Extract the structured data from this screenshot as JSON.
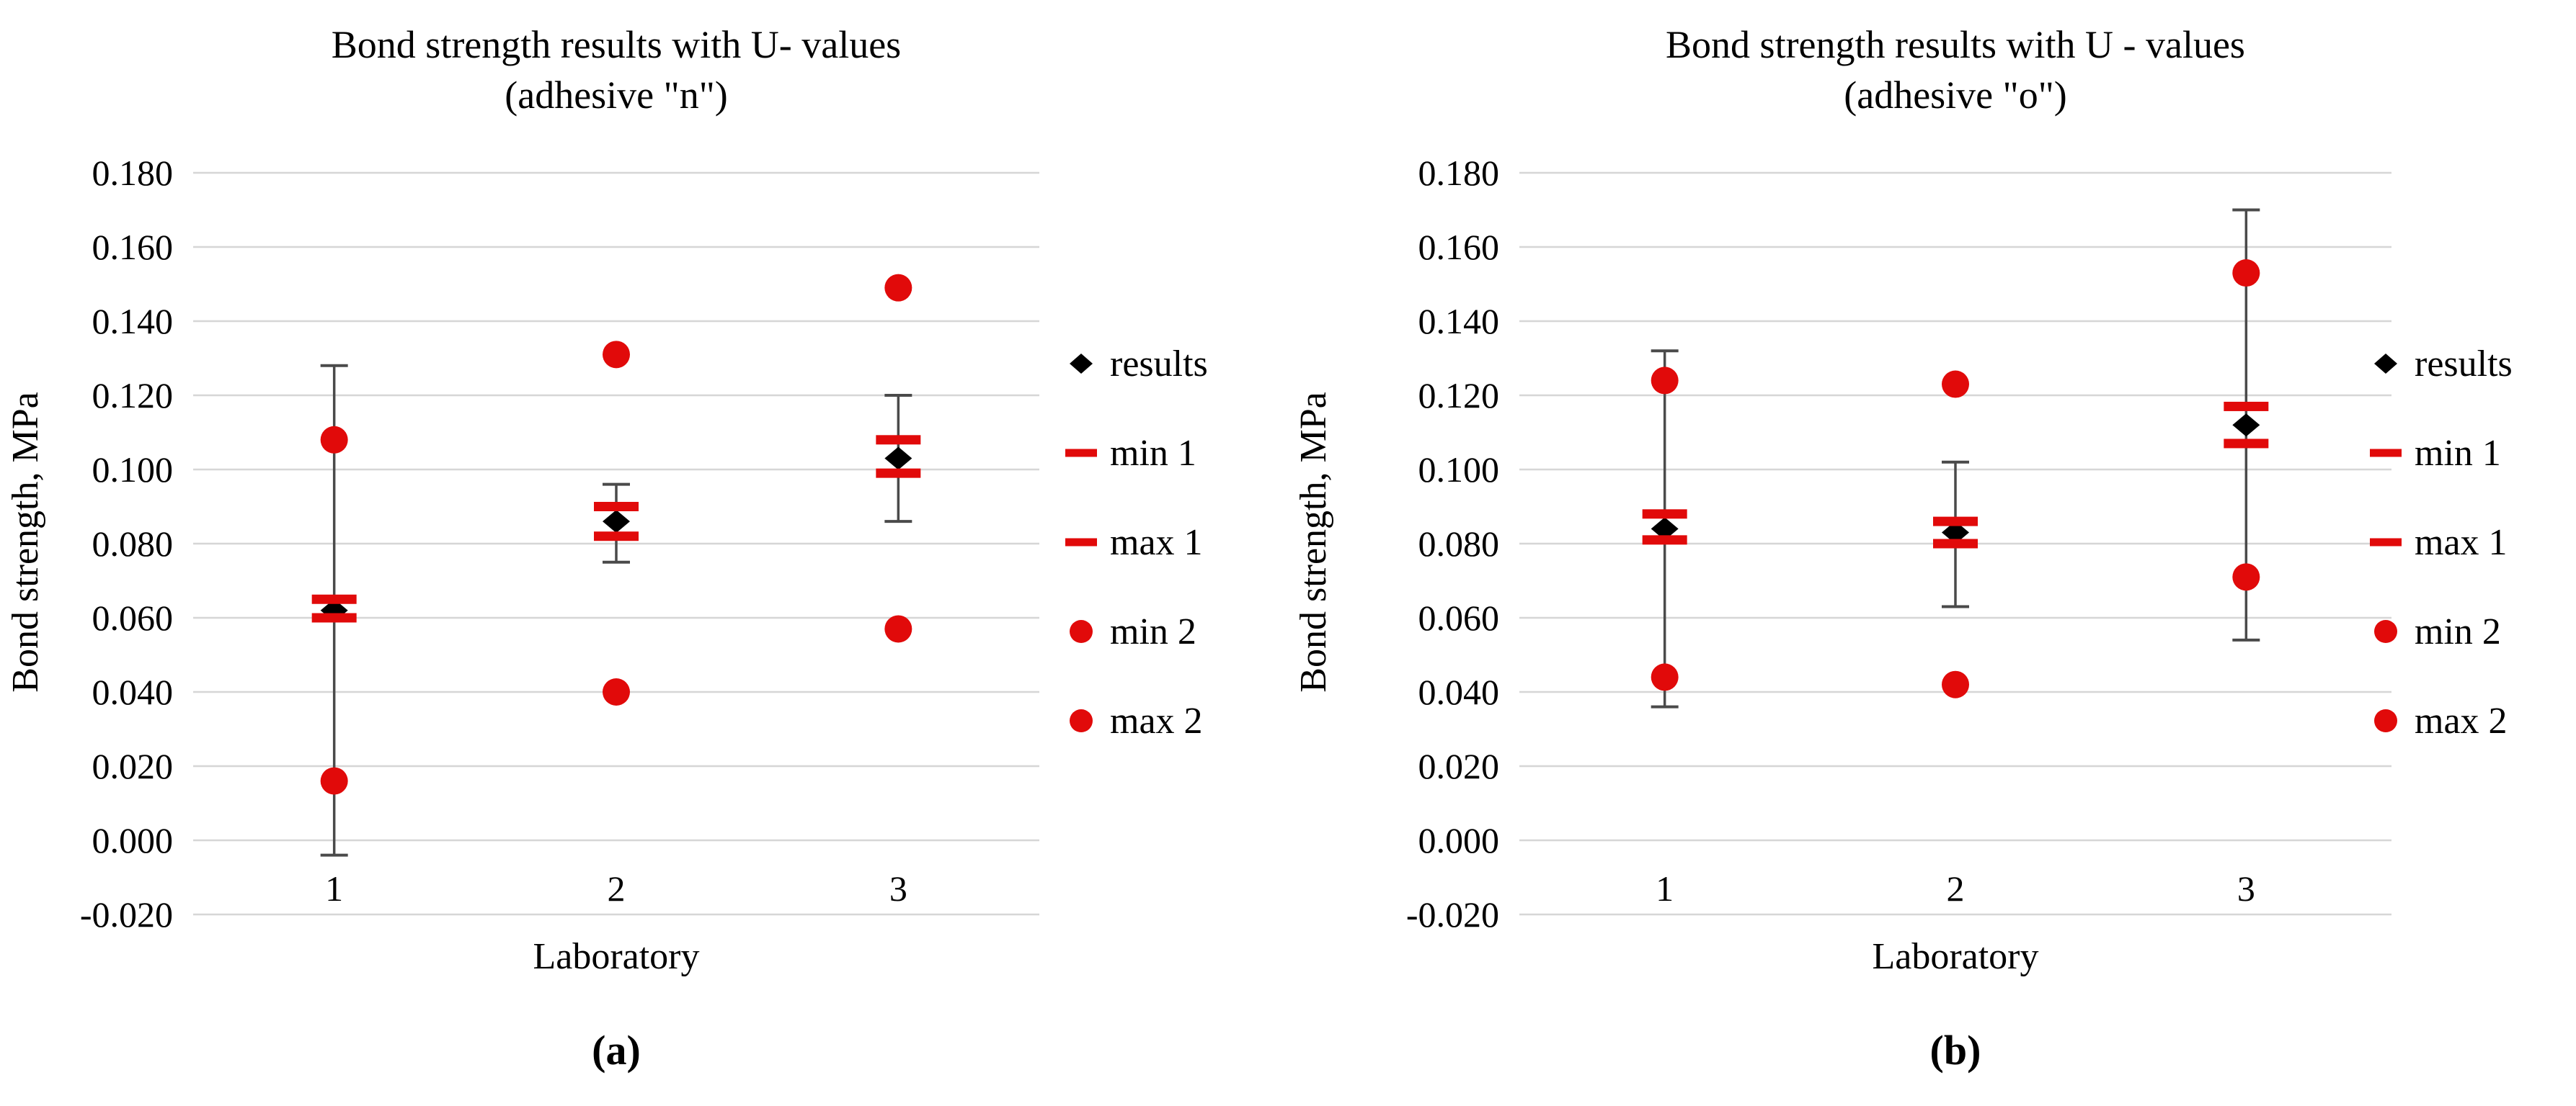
{
  "figure": {
    "background": "#ffffff",
    "panels": [
      "a",
      "b"
    ]
  },
  "colors": {
    "marker_red": "#e10a0a",
    "marker_black": "#000000",
    "gridline": "#d6d6d6",
    "error_bar": "#4a4a4a",
    "text": "#000000"
  },
  "chart_data": [
    {
      "type": "scatter",
      "panel": "a",
      "title": "Bond strength results with U- values",
      "subtitle": "(adhesive \"n\")",
      "xlabel": "Laboratory",
      "ylabel": "Bond strength, MPa",
      "caption": "(a)",
      "categories": [
        "1",
        "2",
        "3"
      ],
      "ylim": [
        -0.02,
        0.18
      ],
      "ytick_step": 0.02,
      "yticks": [
        "0.180",
        "0.160",
        "0.140",
        "0.120",
        "0.100",
        "0.080",
        "0.060",
        "0.040",
        "0.020",
        "0.000",
        "-0.020"
      ],
      "grid": "horizontal",
      "legend_position": "right",
      "series": [
        {
          "name": "results",
          "marker": "diamond",
          "color": "#000000",
          "values": [
            0.062,
            0.086,
            0.103
          ]
        },
        {
          "name": "min 1",
          "marker": "dash",
          "color": "#e10a0a",
          "values": [
            0.06,
            0.082,
            0.099
          ]
        },
        {
          "name": "max 1",
          "marker": "dash",
          "color": "#e10a0a",
          "values": [
            0.065,
            0.09,
            0.108
          ]
        },
        {
          "name": "min 2",
          "marker": "circle",
          "color": "#e10a0a",
          "values": [
            0.016,
            0.04,
            0.057
          ]
        },
        {
          "name": "max 2",
          "marker": "circle",
          "color": "#e10a0a",
          "values": [
            0.108,
            0.131,
            0.149
          ]
        }
      ],
      "error_bars": {
        "attached_to": "results",
        "low": [
          -0.004,
          0.075,
          0.086
        ],
        "high": [
          0.128,
          0.096,
          0.12
        ]
      }
    },
    {
      "type": "scatter",
      "panel": "b",
      "title": "Bond strength results with U - values",
      "subtitle": "(adhesive \"o\")",
      "xlabel": "Laboratory",
      "ylabel": "Bond strength, MPa",
      "caption": "(b)",
      "categories": [
        "1",
        "2",
        "3"
      ],
      "ylim": [
        -0.02,
        0.18
      ],
      "ytick_step": 0.02,
      "yticks": [
        "0.180",
        "0.160",
        "0.140",
        "0.120",
        "0.100",
        "0.080",
        "0.060",
        "0.040",
        "0.020",
        "0.000",
        "-0.020"
      ],
      "grid": "horizontal",
      "legend_position": "right",
      "series": [
        {
          "name": "results",
          "marker": "diamond",
          "color": "#000000",
          "values": [
            0.084,
            0.083,
            0.112
          ]
        },
        {
          "name": "min 1",
          "marker": "dash",
          "color": "#e10a0a",
          "values": [
            0.081,
            0.08,
            0.107
          ]
        },
        {
          "name": "max 1",
          "marker": "dash",
          "color": "#e10a0a",
          "values": [
            0.088,
            0.086,
            0.117
          ]
        },
        {
          "name": "min 2",
          "marker": "circle",
          "color": "#e10a0a",
          "values": [
            0.044,
            0.042,
            0.071
          ]
        },
        {
          "name": "max 2",
          "marker": "circle",
          "color": "#e10a0a",
          "values": [
            0.124,
            0.123,
            0.153
          ]
        }
      ],
      "error_bars": {
        "attached_to": "results",
        "low": [
          0.036,
          0.063,
          0.054
        ],
        "high": [
          0.132,
          0.102,
          0.17
        ]
      }
    }
  ]
}
